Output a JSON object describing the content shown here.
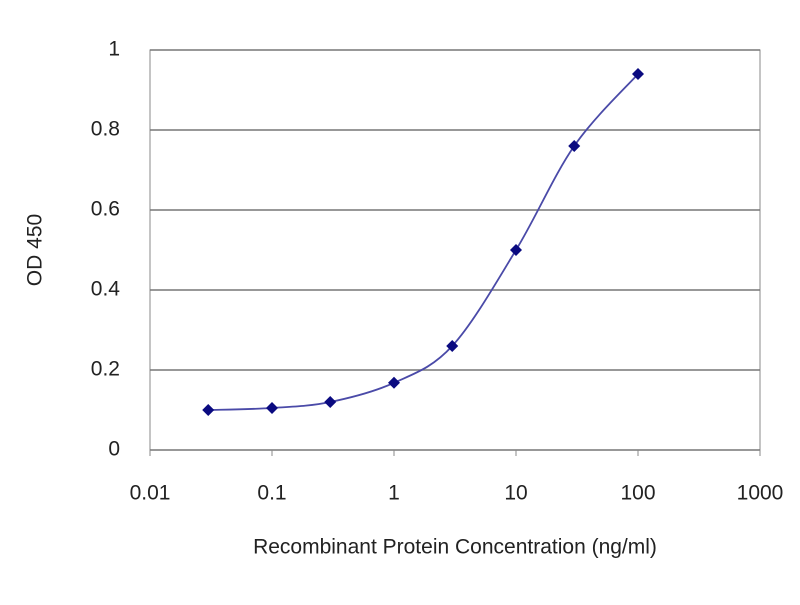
{
  "chart_data": {
    "type": "line",
    "x_label": "Recombinant Protein Concentration (ng/ml)",
    "y_label": "OD 450",
    "x": [
      0.03,
      0.1,
      0.3,
      1,
      3,
      10,
      30,
      100
    ],
    "values": [
      0.1,
      0.105,
      0.12,
      0.168,
      0.26,
      0.5,
      0.76,
      0.94
    ],
    "color": "#0a0a80",
    "line_color": "#4a4aa8",
    "xscale": "log",
    "xlim": [
      0.01,
      1000
    ],
    "xticks": [
      0.01,
      0.1,
      1,
      10,
      100,
      1000
    ],
    "ylim": [
      0,
      1
    ],
    "yticks": [
      0,
      0.2,
      0.4,
      0.6,
      0.8,
      1
    ],
    "grid": true
  }
}
